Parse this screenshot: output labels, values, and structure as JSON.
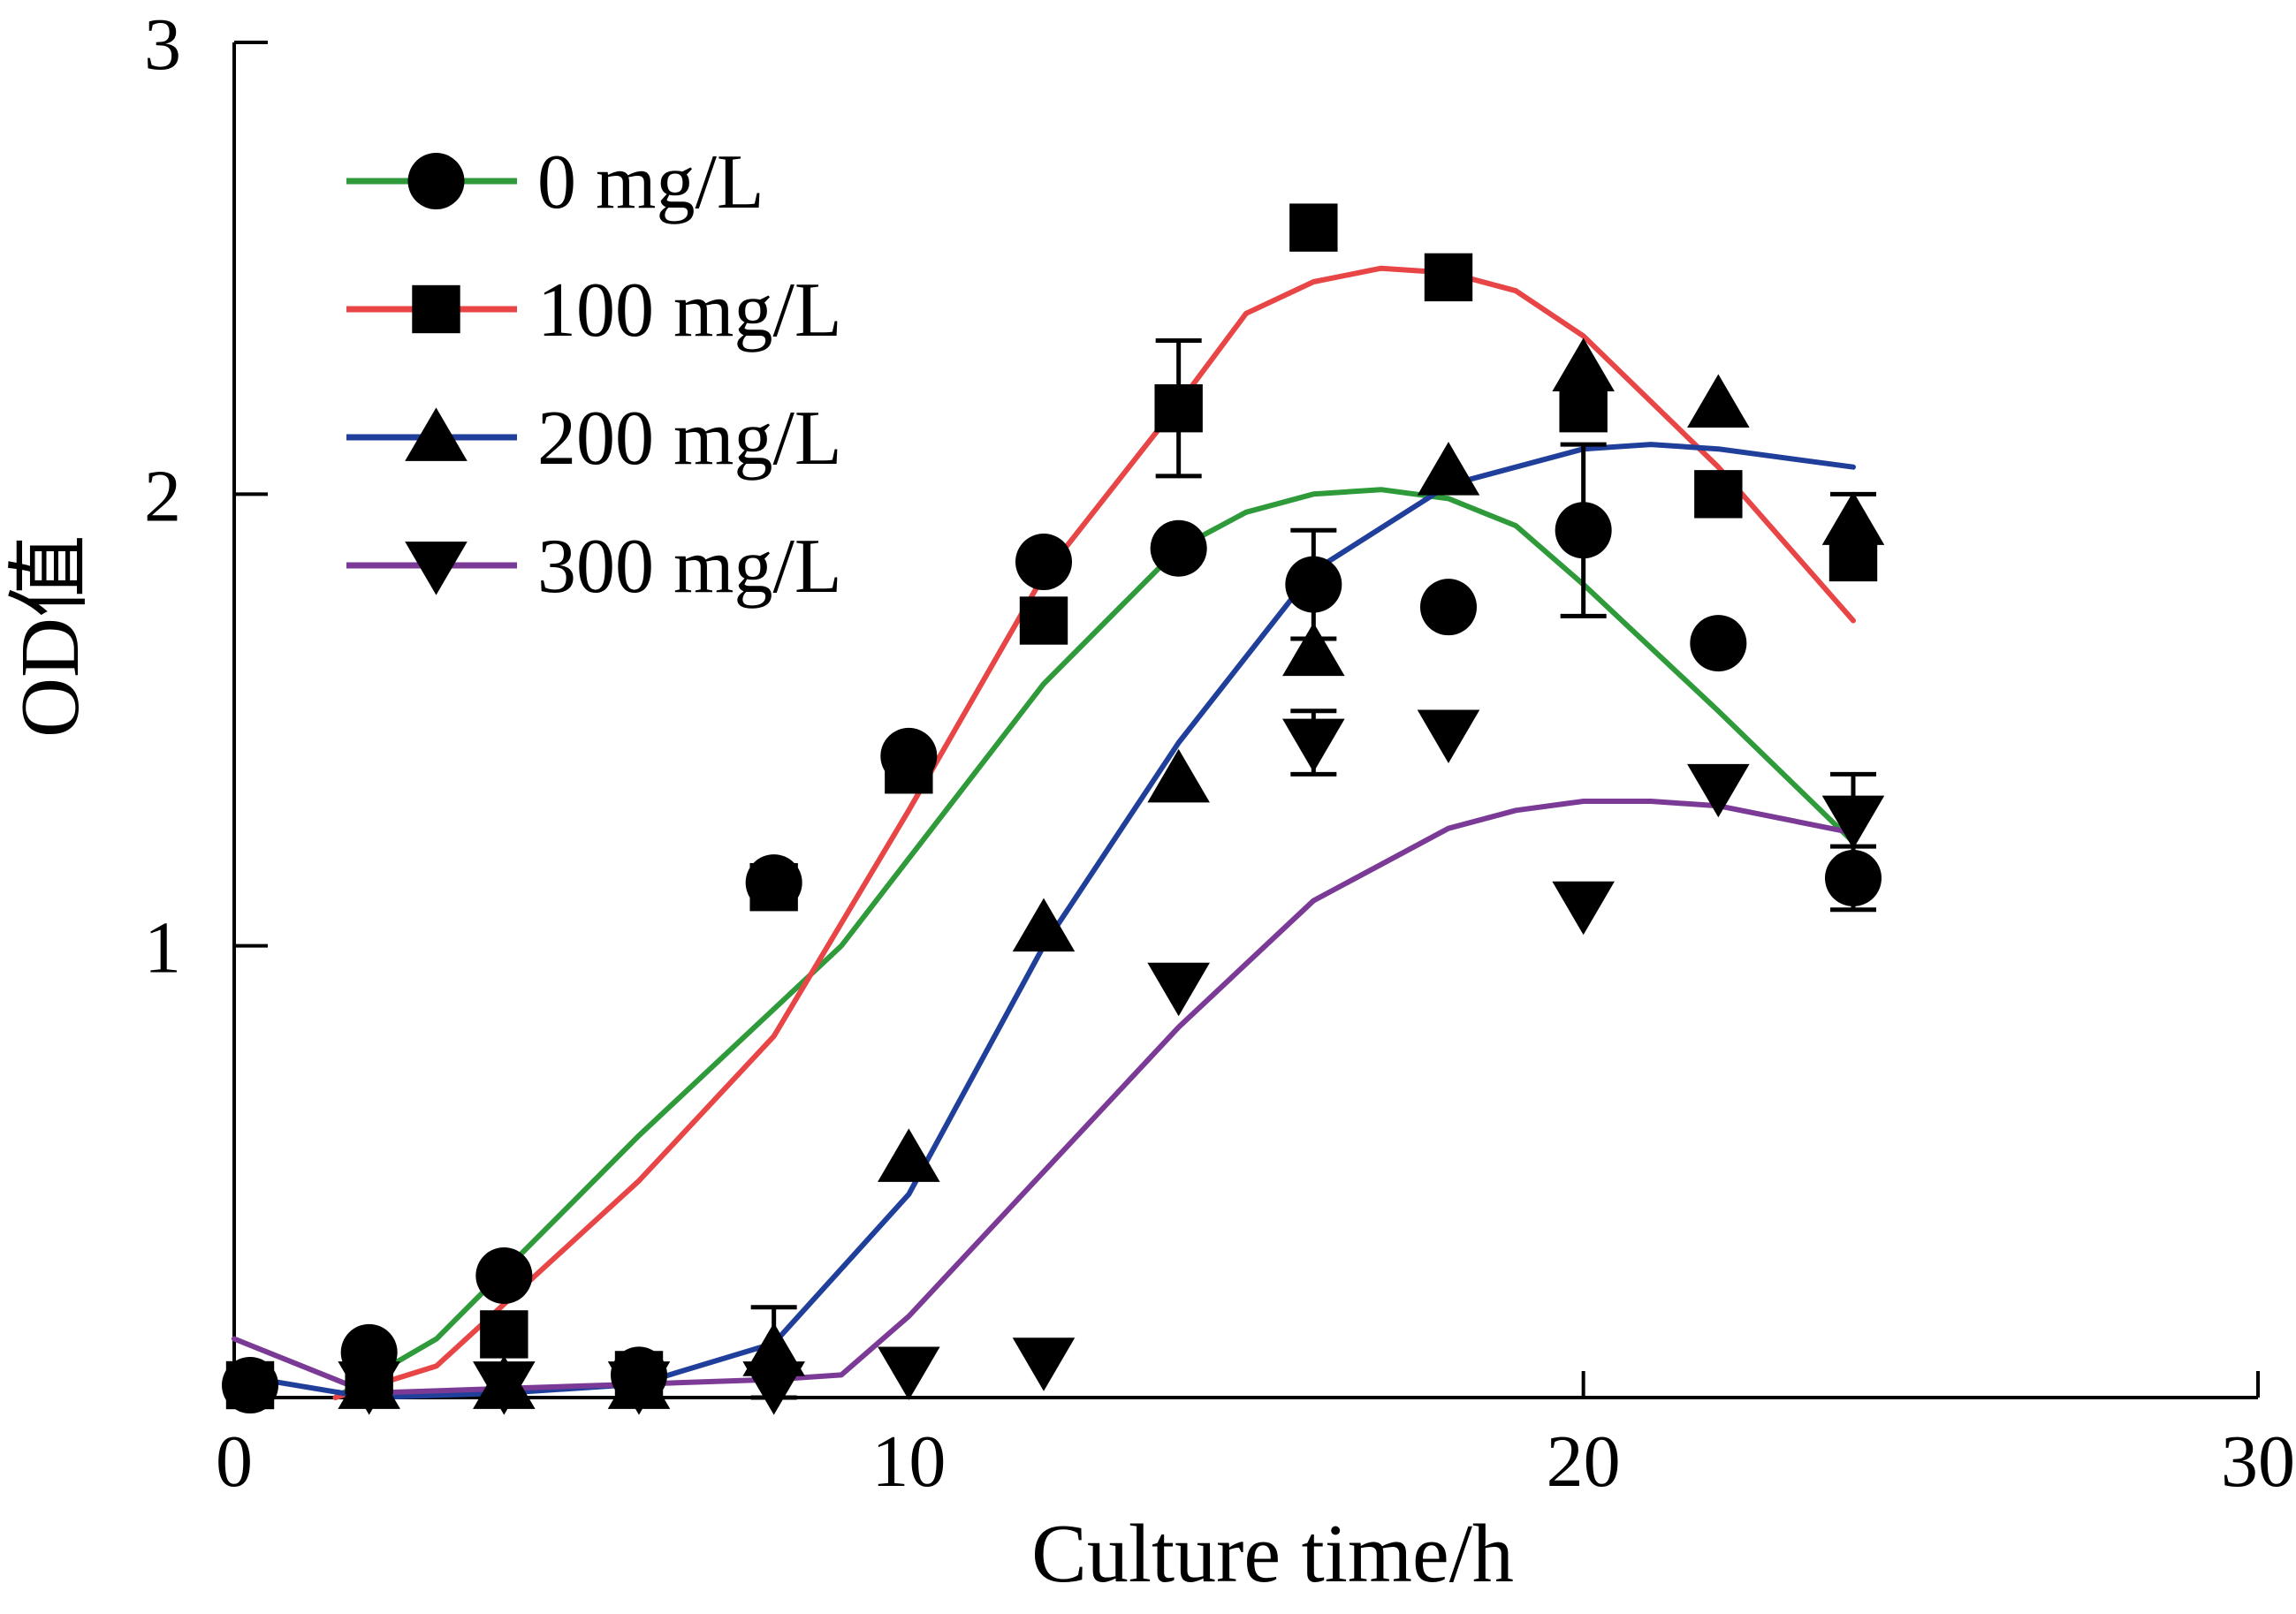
{
  "chart_data": {
    "type": "scatter",
    "xlabel": "Culture time/h",
    "ylabel": "OD值",
    "xlim": [
      0,
      30
    ],
    "ylim": [
      0,
      3
    ],
    "xticks": [
      0,
      10,
      20,
      30
    ],
    "yticks": [
      1,
      2,
      3
    ],
    "grid": false,
    "legend_position": "top-left",
    "series": [
      {
        "name": "0 mg/L",
        "marker": "circle",
        "color": "#2e9a3a",
        "x": [
          0,
          2,
          4,
          6,
          8,
          10,
          12,
          14,
          16,
          18,
          20,
          22,
          24
        ],
        "y": [
          0.0,
          0.1,
          0.27,
          0.05,
          1.14,
          1.42,
          1.85,
          1.88,
          1.8,
          1.75,
          1.92,
          1.67,
          1.15
        ],
        "err": [
          0,
          0,
          0,
          0,
          0,
          0,
          0,
          0,
          0.12,
          0,
          0.19,
          0,
          0.07
        ],
        "fit": [
          [
            1.5,
            0.0
          ],
          [
            3,
            0.13
          ],
          [
            6,
            0.58
          ],
          [
            9,
            1.0
          ],
          [
            12,
            1.58
          ],
          [
            14,
            1.88
          ],
          [
            15,
            1.96
          ],
          [
            16,
            2.0
          ],
          [
            17,
            2.01
          ],
          [
            18,
            1.99
          ],
          [
            19,
            1.93
          ],
          [
            20,
            1.8
          ],
          [
            22,
            1.52
          ],
          [
            24,
            1.23
          ]
        ]
      },
      {
        "name": "100 mg/L",
        "marker": "square",
        "color": "#e84646",
        "x": [
          0,
          2,
          4,
          6,
          8,
          10,
          12,
          14,
          16,
          18,
          20,
          22,
          24
        ],
        "y": [
          0.0,
          0.06,
          0.14,
          0.05,
          1.13,
          1.39,
          1.72,
          2.19,
          2.59,
          2.48,
          2.19,
          2.0,
          1.86
        ],
        "err": [
          0,
          0,
          0,
          0,
          0,
          0,
          0,
          0.15,
          0,
          0,
          0,
          0,
          0
        ],
        "fit": [
          [
            1.5,
            0.0
          ],
          [
            3,
            0.07
          ],
          [
            6,
            0.48
          ],
          [
            8,
            0.8
          ],
          [
            10,
            1.3
          ],
          [
            12,
            1.82
          ],
          [
            14,
            2.2
          ],
          [
            15,
            2.4
          ],
          [
            16,
            2.47
          ],
          [
            17,
            2.5
          ],
          [
            18,
            2.49
          ],
          [
            19,
            2.45
          ],
          [
            20,
            2.35
          ],
          [
            22,
            2.06
          ],
          [
            24,
            1.72
          ]
        ]
      },
      {
        "name": "200 mg/L",
        "marker": "triangle-up",
        "color": "#1f3f9b",
        "x": [
          2,
          4,
          6,
          8,
          10,
          12,
          14,
          16,
          18,
          20,
          22,
          24
        ],
        "y": [
          0.0,
          0.01,
          0.02,
          0.1,
          0.53,
          1.04,
          1.37,
          1.65,
          2.05,
          2.28,
          2.2,
          1.94
        ],
        "err": [
          0,
          0,
          0,
          0.1,
          0,
          0,
          0,
          0,
          0,
          0,
          0,
          0.06
        ],
        "fit": [
          [
            0,
            0.05
          ],
          [
            2,
            0.0
          ],
          [
            4,
            0.01
          ],
          [
            6,
            0.03
          ],
          [
            8,
            0.12
          ],
          [
            10,
            0.45
          ],
          [
            12,
            1.0
          ],
          [
            14,
            1.45
          ],
          [
            16,
            1.83
          ],
          [
            18,
            2.02
          ],
          [
            20,
            2.1
          ],
          [
            21,
            2.11
          ],
          [
            22,
            2.1
          ],
          [
            24,
            2.06
          ]
        ]
      },
      {
        "name": "300 mg/L",
        "marker": "triangle-down",
        "color": "#7b3a96",
        "x": [
          2,
          4,
          6,
          8,
          10,
          12,
          14,
          16,
          18,
          20,
          22,
          24
        ],
        "y": [
          0.0,
          0.0,
          0.02,
          0.0,
          0.06,
          0.08,
          0.91,
          1.45,
          1.47,
          1.09,
          1.35,
          1.28
        ],
        "err": [
          0,
          0,
          0,
          0,
          0,
          0,
          0,
          0.07,
          0,
          0,
          0,
          0.1
        ],
        "fit": [
          [
            0,
            0.13
          ],
          [
            2,
            0.01
          ],
          [
            4,
            0.02
          ],
          [
            6,
            0.03
          ],
          [
            8,
            0.04
          ],
          [
            9,
            0.05
          ],
          [
            10,
            0.18
          ],
          [
            12,
            0.5
          ],
          [
            14,
            0.82
          ],
          [
            16,
            1.1
          ],
          [
            18,
            1.26
          ],
          [
            19,
            1.3
          ],
          [
            20,
            1.32
          ],
          [
            21,
            1.32
          ],
          [
            22,
            1.31
          ],
          [
            24,
            1.25
          ]
        ]
      }
    ]
  }
}
